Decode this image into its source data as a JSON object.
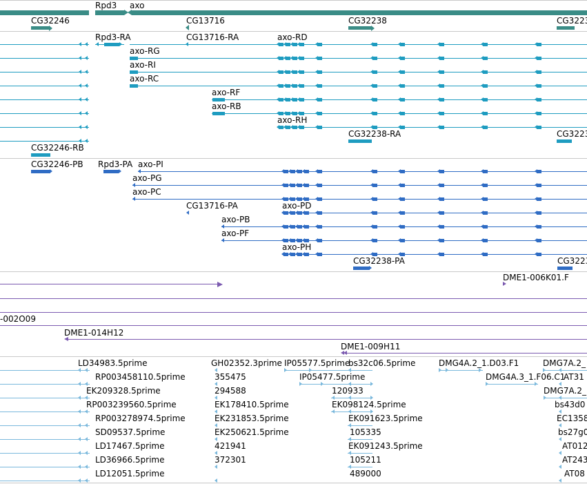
{
  "colors": {
    "gene": "#3a8c86",
    "transcript": "#1e9cc0",
    "protein": "#2f6cc4",
    "clone": "#7b5ab0",
    "est": "#7ab8dc",
    "separator": "#c8c8c8"
  },
  "tracks": {
    "genes": {
      "labels": [
        "Rpd3",
        "axo",
        "CG32246",
        "CG13716",
        "CG32238",
        "CG3223"
      ]
    },
    "transcripts": {
      "labels": [
        "Rpd3-RA",
        "CG13716-RA",
        "axo-RD",
        "axo-RG",
        "axo-RI",
        "axo-RC",
        "axo-RF",
        "axo-RB",
        "axo-RH",
        "CG32238-RA",
        "CG3223",
        "CG32246-RB"
      ]
    },
    "proteins": {
      "labels": [
        "CG32246-PB",
        "Rpd3-PA",
        "axo-PI",
        "axo-PG",
        "axo-PC",
        "CG13716-PA",
        "axo-PD",
        "axo-PB",
        "axo-PF",
        "axo-PH",
        "CG32238-PA",
        "CG3223"
      ]
    },
    "clones": {
      "labels": [
        "DME1-006K01.F",
        "-002O09",
        "DME1-014H12",
        "DME1-009H11"
      ]
    },
    "ests": {
      "labels": [
        "LD34983.5prime",
        "GH02352.3prime",
        "IP05577.5prime",
        "bs32c06.5prime",
        "DMG4A.2_1.D03.F1",
        "DMG7A.2_",
        "RP003458110.5prime",
        "355475",
        "IP05477.5prime",
        "DMG4A.3_1.F06.C1",
        "AT31",
        "EK209328.5prime",
        "294588",
        "120933",
        "DMG7A.2_",
        "RP003239560.5prime",
        "EK178410.5prime",
        "EK098124.5prime",
        "bs43d0",
        "RP003278974.5prime",
        "EK231853.5prime",
        "EK091623.5prime",
        "EC1358",
        "SD09537.5prime",
        "EK250621.5prime",
        "105335",
        "bs27g0",
        "LD17467.5prime",
        "421941",
        "EK091243.5prime",
        "AT012",
        "LD36966.5prime",
        "372301",
        "105211",
        "AT243",
        "LD12051.5prime",
        "489000",
        "AT08"
      ]
    }
  }
}
